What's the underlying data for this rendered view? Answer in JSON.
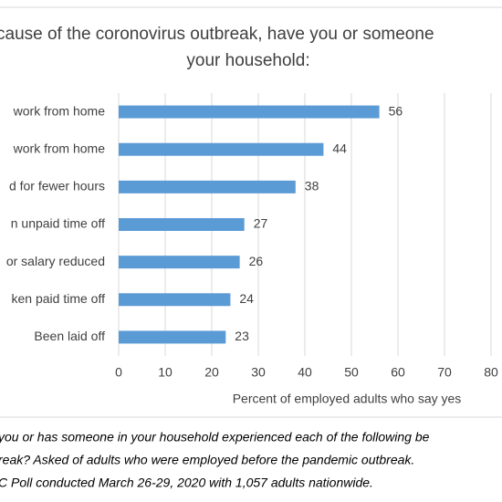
{
  "chart_data": {
    "type": "bar",
    "orientation": "horizontal",
    "title": [
      "cause of the coronovirus outbreak, have you or someone",
      "your household:"
    ],
    "categories": [
      "work from home",
      "work from home",
      "d for fewer hours",
      "n unpaid time off",
      "or salary reduced",
      "ken paid time off",
      "Been laid off"
    ],
    "values": [
      56,
      44,
      38,
      27,
      26,
      24,
      23
    ],
    "color": "#5b9bd5",
    "xlim": [
      0,
      80
    ],
    "xticks": [
      0,
      10,
      20,
      30,
      40,
      50,
      60,
      70,
      80
    ],
    "grid": true,
    "x_label": "Percent of employed adults who say yes",
    "notes": [
      "you or has someone in your household experienced each of the following be",
      "reak? Asked of adults who were employed before the pandemic outbreak.",
      "C Poll conducted March 26-29, 2020 with 1,057 adults nationwide."
    ]
  }
}
